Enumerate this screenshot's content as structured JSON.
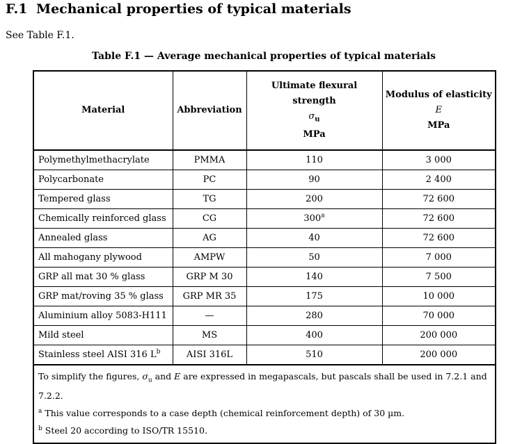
{
  "section": {
    "number": "F.1",
    "title": "Mechanical properties of typical materials",
    "intro": "See Table F.1."
  },
  "table": {
    "caption": "Table F.1 — Average mechanical properties of typical materials",
    "headers": {
      "material": "Material",
      "abbreviation": "Abbreviation",
      "strength": {
        "label": "Ultimate flexural strength",
        "symbol": "σ",
        "subscript": "u",
        "unit": "MPa"
      },
      "modulus": {
        "label": "Modulus of elasticity",
        "symbol": "E",
        "unit": "MPa"
      }
    },
    "rows": [
      {
        "material": "Polymethylmethacrylate",
        "material_sup": "",
        "abbr": "PMMA",
        "strength": "110",
        "strength_sup": "",
        "modulus": "3 000"
      },
      {
        "material": "Polycarbonate",
        "material_sup": "",
        "abbr": "PC",
        "strength": "90",
        "strength_sup": "",
        "modulus": "2 400"
      },
      {
        "material": "Tempered glass",
        "material_sup": "",
        "abbr": "TG",
        "strength": "200",
        "strength_sup": "",
        "modulus": "72 600"
      },
      {
        "material": "Chemically reinforced glass",
        "material_sup": "",
        "abbr": "CG",
        "strength": "300",
        "strength_sup": "a",
        "modulus": "72 600"
      },
      {
        "material": "Annealed glass",
        "material_sup": "",
        "abbr": "AG",
        "strength": "40",
        "strength_sup": "",
        "modulus": "72 600"
      },
      {
        "material": "All mahogany plywood",
        "material_sup": "",
        "abbr": "AMPW",
        "strength": "50",
        "strength_sup": "",
        "modulus": "7 000"
      },
      {
        "material": "GRP all mat 30 % glass",
        "material_sup": "",
        "abbr": "GRP M 30",
        "strength": "140",
        "strength_sup": "",
        "modulus": "7 500"
      },
      {
        "material": "GRP mat/roving 35 % glass",
        "material_sup": "",
        "abbr": "GRP MR 35",
        "strength": "175",
        "strength_sup": "",
        "modulus": "10 000"
      },
      {
        "material": "Aluminium alloy 5083-H111",
        "material_sup": "",
        "abbr": "—",
        "strength": "280",
        "strength_sup": "",
        "modulus": "70 000"
      },
      {
        "material": "Mild steel",
        "material_sup": "",
        "abbr": "MS",
        "strength": "400",
        "strength_sup": "",
        "modulus": "200 000"
      },
      {
        "material": "Stainless steel AISI 316 L",
        "material_sup": "b",
        "abbr": "AISI 316L",
        "strength": "510",
        "strength_sup": "",
        "modulus": "200 000"
      }
    ],
    "footnotes": {
      "note_pre": "To simplify the figures, ",
      "note_sym1": "σ",
      "note_sub1": "u",
      "note_mid": " and ",
      "note_sym2": "E",
      "note_post": " are expressed in megapascals, but pascals shall be used in 7.2.1 and 7.2.2.",
      "a_mark": "a",
      "a_text": "This value corresponds to a case depth (chemical reinforcement depth) of 30 µm.",
      "b_mark": "b",
      "b_text": "Steel 20 according to ISO/TR 15510."
    }
  }
}
